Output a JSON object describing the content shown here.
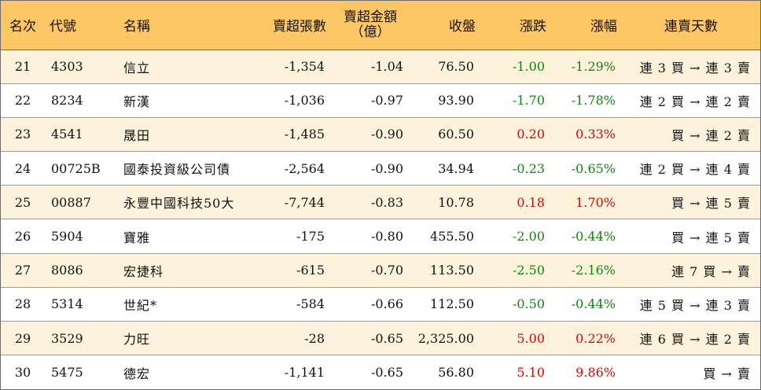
{
  "headers": {
    "rank": "名次",
    "code": "代號",
    "name": "名稱",
    "net_sell_lots": "賣超張數",
    "net_sell_amount_line1": "賣超金額",
    "net_sell_amount_line2": "（億）",
    "close": "收盤",
    "change": "漲跌",
    "change_pct": "漲幅",
    "consecutive": "連賣天數"
  },
  "colors": {
    "header_bg": "#fdc766",
    "odd_row_bg": "#fdf3dc",
    "up": "#e60000",
    "down": "#0a8a0a"
  },
  "rows": [
    {
      "rank": "21",
      "code": "4303",
      "name": "信立",
      "lots": "-1,354",
      "amount": "-1.04",
      "close": "76.50",
      "change": "-1.00",
      "pct": "-1.29%",
      "dir": "down",
      "trend": "連 3 買 → 連 3 賣"
    },
    {
      "rank": "22",
      "code": "8234",
      "name": "新漢",
      "lots": "-1,036",
      "amount": "-0.97",
      "close": "93.90",
      "change": "-1.70",
      "pct": "-1.78%",
      "dir": "down",
      "trend": "連 2 買 → 連 2 賣"
    },
    {
      "rank": "23",
      "code": "4541",
      "name": "晟田",
      "lots": "-1,485",
      "amount": "-0.90",
      "close": "60.50",
      "change": "0.20",
      "pct": "0.33%",
      "dir": "up",
      "trend": "買 → 連 2 賣"
    },
    {
      "rank": "24",
      "code": "00725B",
      "name": "國泰投資級公司債",
      "lots": "-2,564",
      "amount": "-0.90",
      "close": "34.94",
      "change": "-0.23",
      "pct": "-0.65%",
      "dir": "down",
      "trend": "連 2 買 → 連 4 賣"
    },
    {
      "rank": "25",
      "code": "00887",
      "name": "永豐中國科技50大",
      "lots": "-7,744",
      "amount": "-0.83",
      "close": "10.78",
      "change": "0.18",
      "pct": "1.70%",
      "dir": "up",
      "trend": "買 → 連 5 賣"
    },
    {
      "rank": "26",
      "code": "5904",
      "name": "寶雅",
      "lots": "-175",
      "amount": "-0.80",
      "close": "455.50",
      "change": "-2.00",
      "pct": "-0.44%",
      "dir": "down",
      "trend": "買 → 連 5 賣"
    },
    {
      "rank": "27",
      "code": "8086",
      "name": "宏捷科",
      "lots": "-615",
      "amount": "-0.70",
      "close": "113.50",
      "change": "-2.50",
      "pct": "-2.16%",
      "dir": "down",
      "trend": "連 7 買 → 賣"
    },
    {
      "rank": "28",
      "code": "5314",
      "name": "世紀*",
      "lots": "-584",
      "amount": "-0.66",
      "close": "112.50",
      "change": "-0.50",
      "pct": "-0.44%",
      "dir": "down",
      "trend": "連 5 買 → 連 3 賣"
    },
    {
      "rank": "29",
      "code": "3529",
      "name": "力旺",
      "lots": "-28",
      "amount": "-0.65",
      "close": "2,325.00",
      "change": "5.00",
      "pct": "0.22%",
      "dir": "up",
      "trend": "連 6 買 → 連 2 賣"
    },
    {
      "rank": "30",
      "code": "5475",
      "name": "德宏",
      "lots": "-1,141",
      "amount": "-0.65",
      "close": "56.80",
      "change": "5.10",
      "pct": "9.86%",
      "dir": "up",
      "trend": "買 → 賣"
    }
  ]
}
